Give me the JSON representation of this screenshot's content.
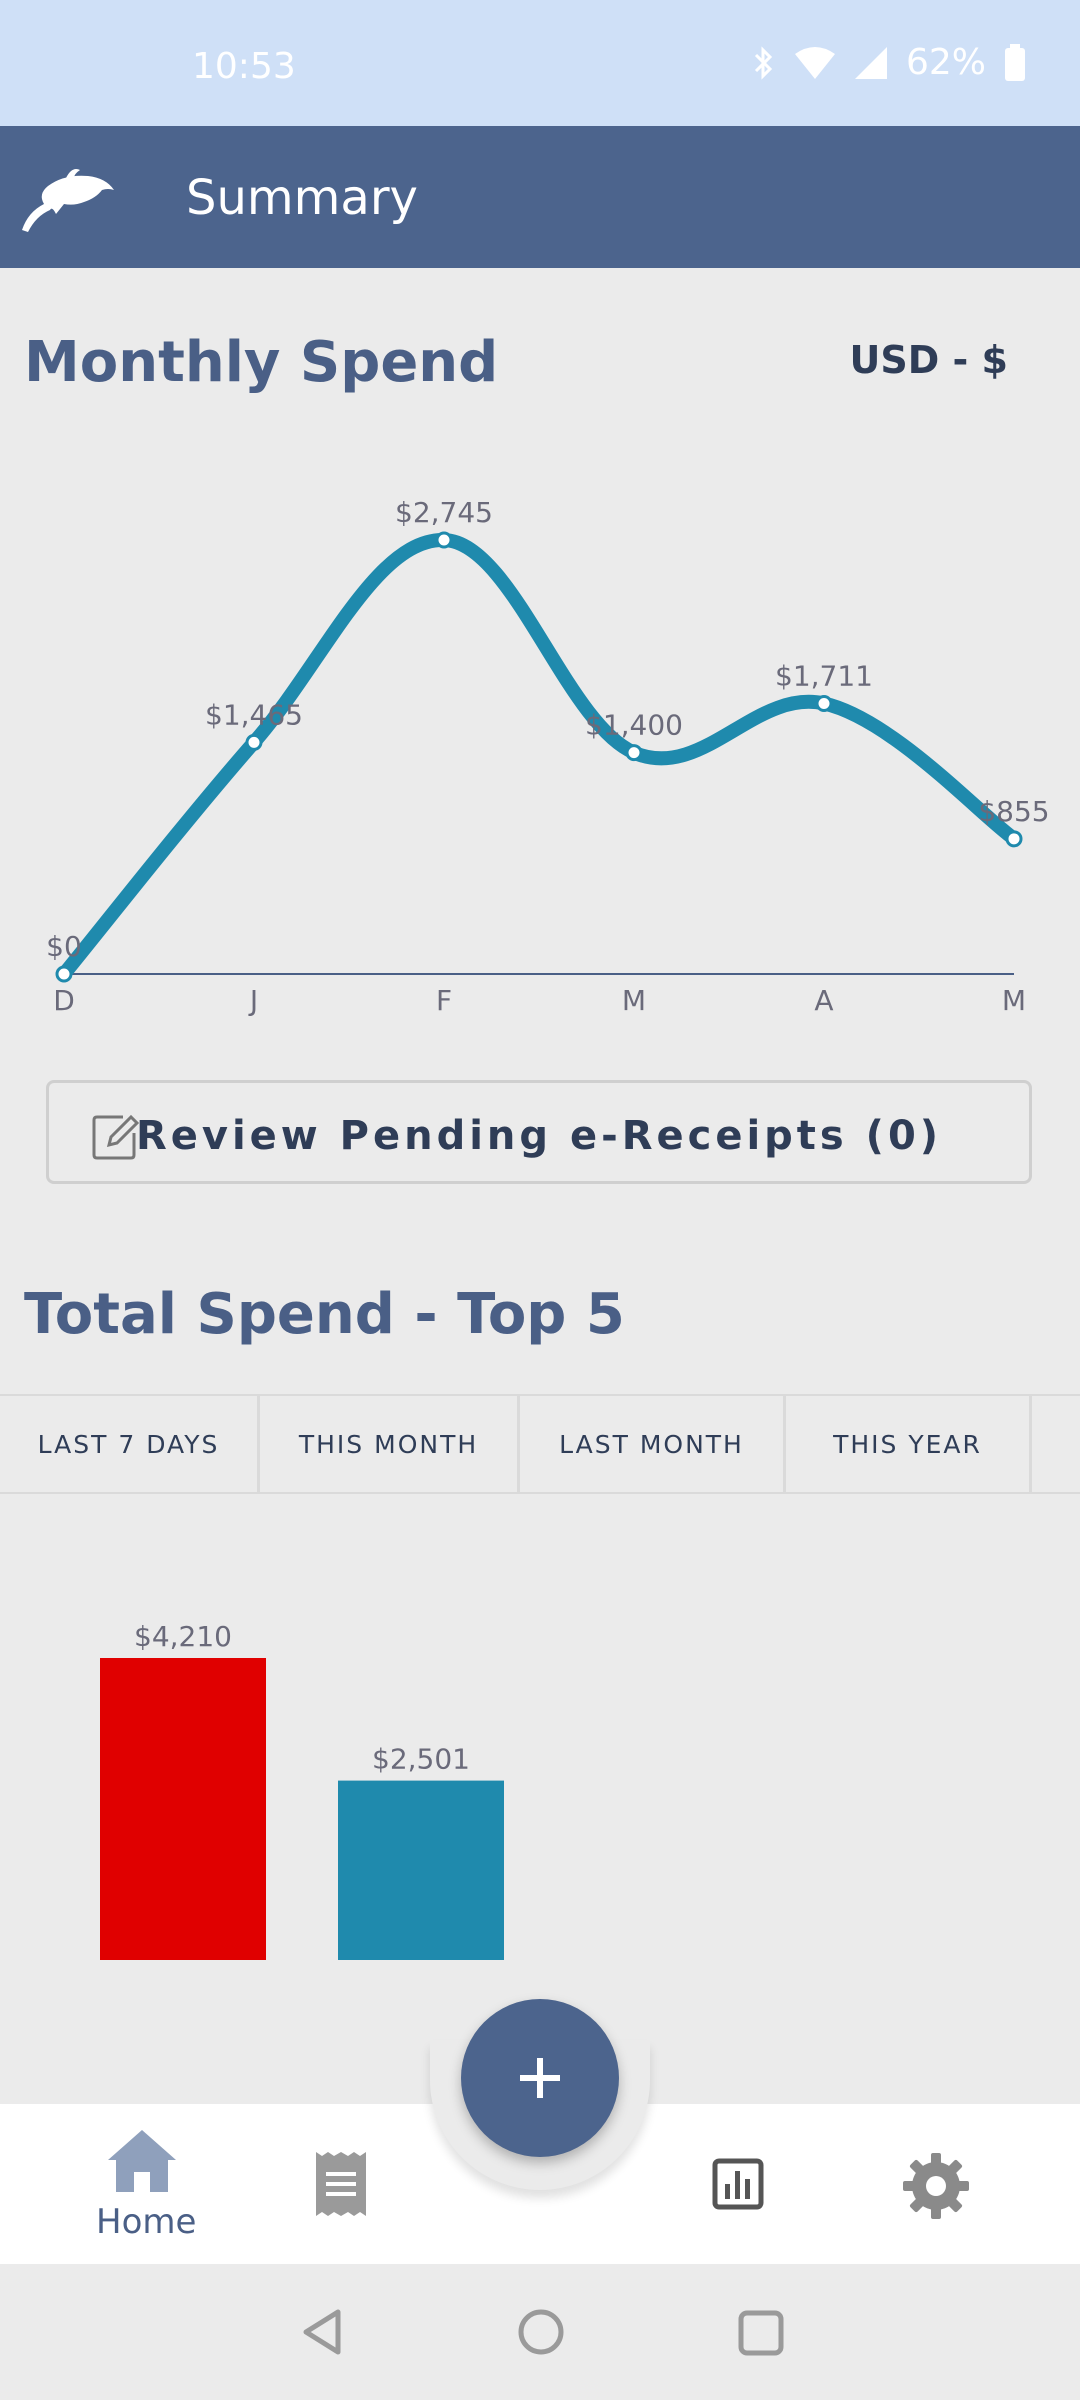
{
  "status_bar": {
    "time": "10:53",
    "battery": "62%",
    "icons": [
      "bluetooth-icon",
      "wifi-icon",
      "signal-icon",
      "battery-icon"
    ]
  },
  "app_bar": {
    "title": "Summary",
    "logo_icon": "dolphin-logo-icon"
  },
  "monthly_spend": {
    "title": "Monthly Spend",
    "currency": "USD - $"
  },
  "chart_data": [
    {
      "type": "line",
      "title": "Monthly Spend",
      "categories": [
        "D",
        "J",
        "F",
        "M",
        "A",
        "M"
      ],
      "series": [
        {
          "values": [
            0,
            1465,
            2745,
            1400,
            1711,
            855
          ]
        }
      ],
      "data_labels": [
        "$0",
        "$1,465",
        "$2,745",
        "$1,400",
        "$1,711",
        "$855"
      ],
      "ylim": [
        0,
        2745
      ],
      "grid": false,
      "line_color": "#1f8aad"
    },
    {
      "type": "bar",
      "title": "",
      "categories": [
        "",
        ""
      ],
      "values": [
        4210,
        2501
      ],
      "data_labels": [
        "$4,210",
        "$2,501"
      ],
      "colors": [
        "#e00000",
        "#1f8aad"
      ],
      "ylim": [
        0,
        4210
      ]
    }
  ],
  "review": {
    "label": "Review Pending e-Receipts (0)",
    "icon": "edit-icon"
  },
  "top5": {
    "title": "Total Spend - Top 5",
    "tabs": [
      "LAST 7 DAYS",
      "THIS MONTH",
      "LAST MONTH",
      "THIS YEAR"
    ]
  },
  "bottom_nav": {
    "home_label": "Home",
    "items": [
      "home-icon",
      "receipt-icon",
      "report-chart-icon",
      "settings-gear-icon"
    ],
    "fab_icon": "plus-icon"
  },
  "colors": {
    "primary": "#4c648d",
    "accent_line": "#1f8aad",
    "bar_red": "#e00000",
    "status_bar": "#cfe0f7"
  }
}
